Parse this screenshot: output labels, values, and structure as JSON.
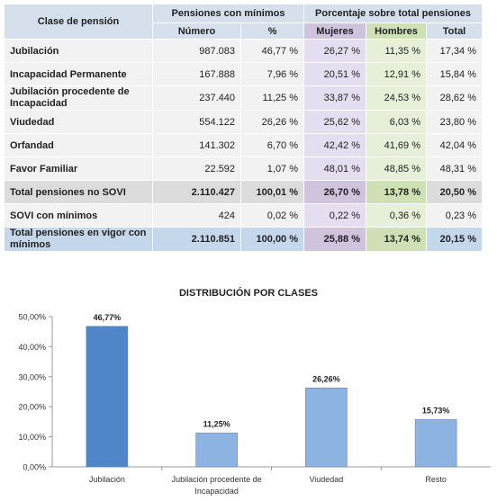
{
  "table": {
    "header": {
      "clase": "Clase de pensión",
      "group_minimos": "Pensiones con mínimos",
      "group_porcentaje": "Porcentaje sobre total pensiones",
      "numero": "Número",
      "pct": "%",
      "mujeres": "Mujeres",
      "hombres": "Hombres",
      "total": "Total"
    },
    "rows": [
      {
        "label": "Jubilación",
        "numero": "987.083",
        "pct": "46,77 %",
        "mujeres": "26,27 %",
        "hombres": "11,35 %",
        "total": "17,34 %"
      },
      {
        "label": "Incapacidad Permanente",
        "numero": "167.888",
        "pct": "7,96 %",
        "mujeres": "20,51 %",
        "hombres": "12,91 %",
        "total": "15,84 %"
      },
      {
        "label": "Jubilación procedente de Incapacidad",
        "numero": "237.440",
        "pct": "11,25 %",
        "mujeres": "33,87 %",
        "hombres": "24,53 %",
        "total": "28,62 %"
      },
      {
        "label": "Viudedad",
        "numero": "554.122",
        "pct": "26,26 %",
        "mujeres": "25,62 %",
        "hombres": "6,03 %",
        "total": "23,80 %"
      },
      {
        "label": "Orfandad",
        "numero": "141.302",
        "pct": "6,70 %",
        "mujeres": "42,42 %",
        "hombres": "41,69 %",
        "total": "42,04 %"
      },
      {
        "label": "Favor Familiar",
        "numero": "22.592",
        "pct": "1,07 %",
        "mujeres": "48,01 %",
        "hombres": "48,85 %",
        "total": "48,31 %"
      },
      {
        "label": "Total pensiones no SOVI",
        "numero": "2.110.427",
        "pct": "100,01 %",
        "mujeres": "26,70 %",
        "hombres": "13,78 %",
        "total": "20,50 %"
      },
      {
        "label": "SOVI con mínimos",
        "numero": "424",
        "pct": "0,02 %",
        "mujeres": "0,22 %",
        "hombres": "0,36 %",
        "total": "0,23 %"
      },
      {
        "label": "Total pensiones en vigor con mínimos",
        "numero": "2.110.851",
        "pct": "100,00 %",
        "mujeres": "25,88 %",
        "hombres": "13,74 %",
        "total": "20,15 %"
      }
    ]
  },
  "chart_data": {
    "type": "bar",
    "title": "DISTRIBUCIÓN POR CLASES",
    "categories": [
      "Jubilación",
      "Jubilación procedente de Incapacidad",
      "Viudedad",
      "Resto"
    ],
    "values": [
      46.77,
      11.25,
      26.26,
      15.73
    ],
    "value_labels": [
      "46,77%",
      "11,25%",
      "26,26%",
      "15,73%"
    ],
    "ylim": [
      0,
      50
    ],
    "yticks": [
      "0,00%",
      "10,00%",
      "20,00%",
      "30,00%",
      "40,00%",
      "50,00%"
    ],
    "grid": false,
    "colors": [
      "#4e86c8",
      "#8db3e2",
      "#8db3e2",
      "#8db3e2"
    ]
  }
}
